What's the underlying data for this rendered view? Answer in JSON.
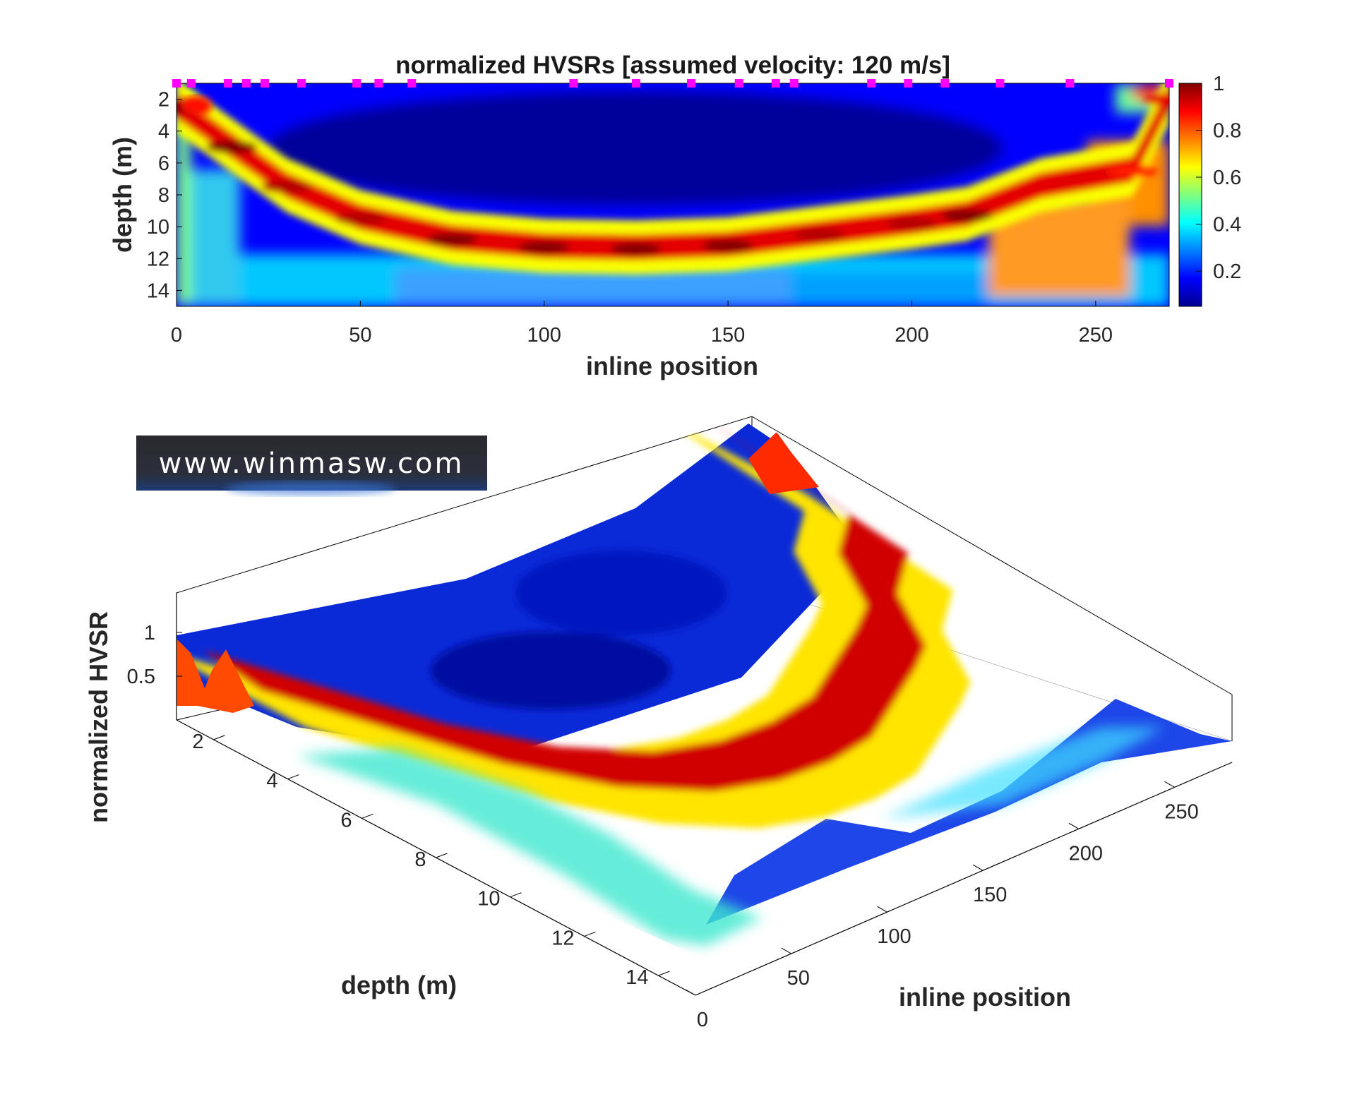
{
  "watermark": "www.winmasw.com",
  "chart_data": [
    {
      "type": "heatmap",
      "title": "normalized HVSRs [assumed velocity: 120 m/s]",
      "xlabel": "inline position",
      "ylabel": "depth (m)",
      "xlim": [
        0,
        270
      ],
      "ylim": [
        1,
        15
      ],
      "y_reversed": true,
      "xticks": [
        "0",
        "50",
        "100",
        "150",
        "200",
        "250"
      ],
      "yticks": [
        "2",
        "4",
        "6",
        "8",
        "10",
        "12",
        "14"
      ],
      "colormap": "jet",
      "colorbar": {
        "range": [
          0.05,
          1
        ],
        "ticks": [
          "0.2",
          "0.4",
          "0.6",
          "0.8",
          "1"
        ]
      },
      "measurement_points_color": "#ff00ff",
      "measurement_points_x": [
        0,
        4,
        14,
        19,
        24,
        34,
        49,
        55,
        64,
        108,
        125,
        140,
        153,
        163,
        168,
        189,
        199,
        209,
        224,
        243,
        270
      ],
      "peak_depth_profile": {
        "x": [
          0,
          15,
          30,
          50,
          75,
          100,
          125,
          150,
          175,
          200,
          215,
          235,
          260,
          270
        ],
        "depth": [
          2.5,
          5,
          7.5,
          9.5,
          10.8,
          11.3,
          11.4,
          11.2,
          10.5,
          9.8,
          9.3,
          7.5,
          6.5,
          2
        ],
        "value": [
          1,
          1,
          0.95,
          0.95,
          1,
          1,
          1,
          1,
          0.95,
          0.95,
          1,
          0.9,
          0.85,
          0.9
        ]
      }
    },
    {
      "type": "surface",
      "xlabel": "depth (m)",
      "ylabel": "inline position",
      "zlabel": "normalized HVSR",
      "depth_ticks": [
        "2",
        "4",
        "6",
        "8",
        "10",
        "12",
        "14"
      ],
      "position_ticks": [
        "0",
        "50",
        "100",
        "150",
        "200",
        "250"
      ],
      "z_ticks": [
        "0.5",
        "1"
      ],
      "colormap": "jet"
    }
  ]
}
